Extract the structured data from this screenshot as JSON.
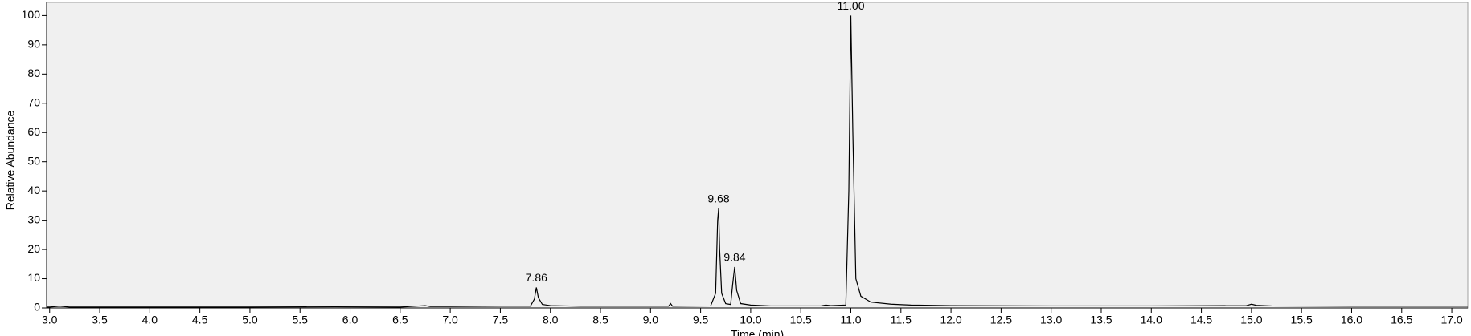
{
  "chart_data": {
    "type": "line",
    "xlabel": "Time (min)",
    "ylabel": "Relative Abundance",
    "color": "#000000",
    "x": [
      2.97,
      3.0,
      3.1,
      3.2,
      4.0,
      5.0,
      5.85,
      6.5,
      6.75,
      6.8,
      7.0,
      7.5,
      7.8,
      7.84,
      7.86,
      7.88,
      7.92,
      8.0,
      8.3,
      8.6,
      9.18,
      9.2,
      9.22,
      9.6,
      9.65,
      9.67,
      9.68,
      9.69,
      9.71,
      9.75,
      9.8,
      9.82,
      9.84,
      9.86,
      9.9,
      10.0,
      10.2,
      10.7,
      10.75,
      10.8,
      10.95,
      10.98,
      11.0,
      11.02,
      11.05,
      11.1,
      11.2,
      11.4,
      11.6,
      12.0,
      13.0,
      14.0,
      14.95,
      15.0,
      15.05,
      15.2,
      16.0,
      17.0,
      17.16
    ],
    "values": [
      0.3,
      0.3,
      0.6,
      0.3,
      0.3,
      0.3,
      0.4,
      0.3,
      0.8,
      0.5,
      0.5,
      0.6,
      0.6,
      3,
      7,
      3.5,
      1.2,
      0.8,
      0.6,
      0.6,
      0.6,
      1.5,
      0.6,
      0.7,
      5,
      30,
      34,
      20,
      5,
      1.5,
      1.2,
      8,
      14,
      6,
      1.5,
      1,
      0.7,
      0.7,
      1,
      0.8,
      1,
      40,
      100,
      60,
      10,
      4,
      2,
      1.3,
      1,
      0.8,
      0.7,
      0.7,
      0.8,
      1.3,
      0.9,
      0.7,
      0.6,
      0.6,
      0.6
    ],
    "annotations": [
      {
        "text": "7.86",
        "x": 7.86,
        "y": 7
      },
      {
        "text": "9.68",
        "x": 9.68,
        "y": 34
      },
      {
        "text": "9.84",
        "x": 9.84,
        "y": 14
      },
      {
        "text": "11.00",
        "x": 11.0,
        "y": 100
      }
    ],
    "xlim": [
      2.97,
      17.16
    ],
    "ylim": [
      0,
      104.5
    ],
    "xticks": [
      {
        "value": 3,
        "label": "3.0"
      },
      3.5,
      {
        "value": 4,
        "label": "4.0"
      },
      4.5,
      {
        "value": 5,
        "label": "5.0"
      },
      5.5,
      {
        "value": 6,
        "label": "6.0"
      },
      6.5,
      {
        "value": 7,
        "label": "7.0"
      },
      7.5,
      {
        "value": 8,
        "label": "8.0"
      },
      8.5,
      {
        "value": 9,
        "label": "9.0"
      },
      9.5,
      {
        "value": 10,
        "label": "10.0"
      },
      10.5,
      {
        "value": 11,
        "label": "11.0"
      },
      11.5,
      {
        "value": 12,
        "label": "12.0"
      },
      12.5,
      {
        "value": 13,
        "label": "13.0"
      },
      13.5,
      {
        "value": 14,
        "label": "14.0"
      },
      14.5,
      {
        "value": 15,
        "label": "15.0"
      },
      15.5,
      {
        "value": 16,
        "label": "16.0"
      },
      16.5,
      {
        "value": 17,
        "label": "17.0"
      }
    ],
    "yticks": [
      0,
      10,
      20,
      30,
      40,
      50,
      60,
      70,
      80,
      90,
      100
    ]
  }
}
